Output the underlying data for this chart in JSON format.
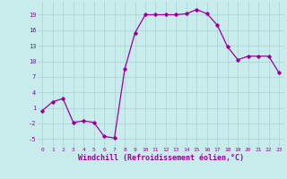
{
  "x": [
    0,
    1,
    2,
    3,
    4,
    5,
    6,
    7,
    8,
    9,
    10,
    11,
    12,
    13,
    14,
    15,
    16,
    17,
    18,
    19,
    20,
    21,
    22,
    23
  ],
  "y": [
    0.5,
    2.2,
    2.8,
    -1.8,
    -1.5,
    -1.8,
    -4.5,
    -4.8,
    8.5,
    15.5,
    19.0,
    19.0,
    19.0,
    19.0,
    19.2,
    20.0,
    19.2,
    17.0,
    12.8,
    10.3,
    11.0,
    11.0,
    11.0,
    7.8
  ],
  "line_color": "#990099",
  "marker": "D",
  "marker_size": 1.8,
  "linewidth": 0.9,
  "xlabel": "Windchill (Refroidissement éolien,°C)",
  "xlabel_fontsize": 6,
  "bg_color": "#c8ecec",
  "grid_color": "#aed6d6",
  "tick_color": "#990099",
  "label_color": "#990099",
  "yticks": [
    -5,
    -2,
    1,
    4,
    7,
    10,
    13,
    16,
    19
  ],
  "xticks": [
    0,
    1,
    2,
    3,
    4,
    5,
    6,
    7,
    8,
    9,
    10,
    11,
    12,
    13,
    14,
    15,
    16,
    17,
    18,
    19,
    20,
    21,
    22,
    23
  ],
  "ylim": [
    -6.5,
    21.5
  ],
  "xlim": [
    -0.5,
    23.5
  ]
}
